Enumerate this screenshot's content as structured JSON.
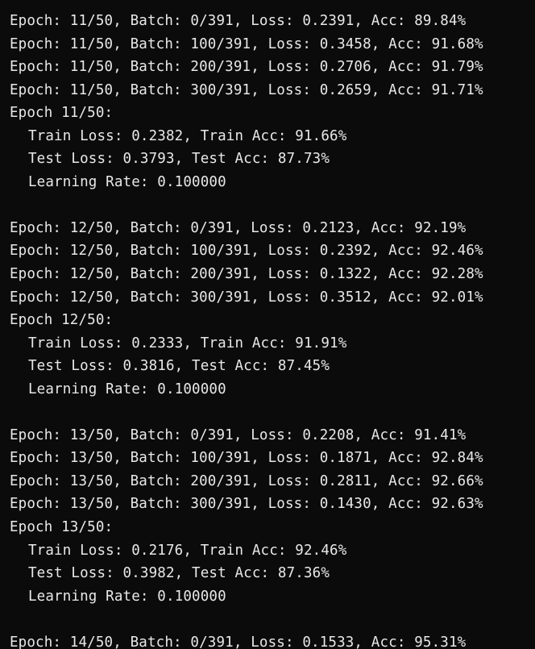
{
  "log_blocks": [
    {
      "batches": [
        "Epoch: 11/50, Batch: 0/391, Loss: 0.2391, Acc: 89.84%",
        "Epoch: 11/50, Batch: 100/391, Loss: 0.3458, Acc: 91.68%",
        "Epoch: 11/50, Batch: 200/391, Loss: 0.2706, Acc: 91.79%",
        "Epoch: 11/50, Batch: 300/391, Loss: 0.2659, Acc: 91.71%"
      ],
      "summary_header": "Epoch 11/50:",
      "train": "Train Loss: 0.2382, Train Acc: 91.66%",
      "test": "Test Loss: 0.3793, Test Acc: 87.73%",
      "lr": "Learning Rate: 0.100000"
    },
    {
      "batches": [
        "Epoch: 12/50, Batch: 0/391, Loss: 0.2123, Acc: 92.19%",
        "Epoch: 12/50, Batch: 100/391, Loss: 0.2392, Acc: 92.46%",
        "Epoch: 12/50, Batch: 200/391, Loss: 0.1322, Acc: 92.28%",
        "Epoch: 12/50, Batch: 300/391, Loss: 0.3512, Acc: 92.01%"
      ],
      "summary_header": "Epoch 12/50:",
      "train": "Train Loss: 0.2333, Train Acc: 91.91%",
      "test": "Test Loss: 0.3816, Test Acc: 87.45%",
      "lr": "Learning Rate: 0.100000"
    },
    {
      "batches": [
        "Epoch: 13/50, Batch: 0/391, Loss: 0.2208, Acc: 91.41%",
        "Epoch: 13/50, Batch: 100/391, Loss: 0.1871, Acc: 92.84%",
        "Epoch: 13/50, Batch: 200/391, Loss: 0.2811, Acc: 92.66%",
        "Epoch: 13/50, Batch: 300/391, Loss: 0.1430, Acc: 92.63%"
      ],
      "summary_header": "Epoch 13/50:",
      "train": "Train Loss: 0.2176, Train Acc: 92.46%",
      "test": "Test Loss: 0.3982, Test Acc: 87.36%",
      "lr": "Learning Rate: 0.100000"
    }
  ],
  "last_line": "Epoch: 14/50, Batch: 0/391, Loss: 0.1533, Acc: 95.31%"
}
